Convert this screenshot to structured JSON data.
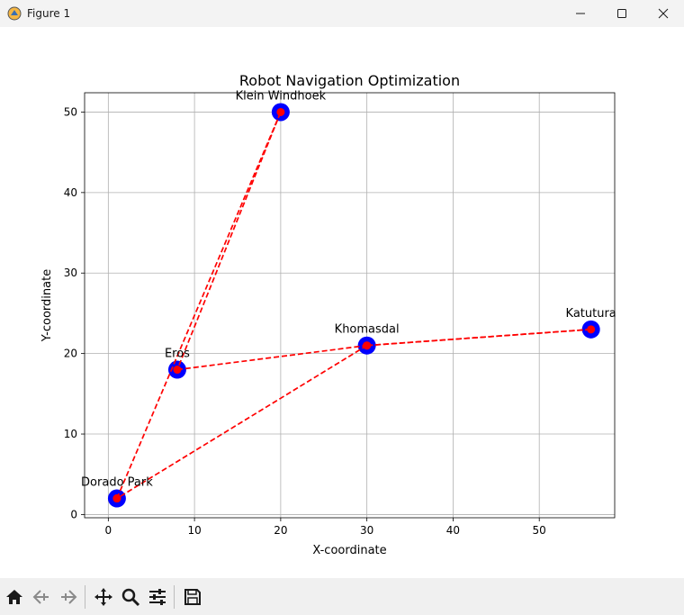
{
  "window": {
    "title": "Figure 1",
    "minimize_icon": "minimize-icon",
    "maximize_icon": "maximize-icon",
    "close_icon": "close-icon"
  },
  "toolbar": {
    "tools": [
      "home-icon",
      "back-arrow-icon",
      "forward-arrow-icon",
      "pan-move-icon",
      "zoom-magnifier-icon",
      "configure-subplots-icon",
      "save-floppy-icon"
    ]
  },
  "chart_data": {
    "type": "scatter",
    "title": "Robot Navigation Optimization",
    "xlabel": "X-coordinate",
    "ylabel": "Y-coordinate",
    "xlim": [
      -2.75,
      58.75
    ],
    "ylim": [
      -0.4,
      52.4
    ],
    "xticks": [
      0,
      10,
      20,
      30,
      40,
      50
    ],
    "yticks": [
      0,
      10,
      20,
      30,
      40,
      50
    ],
    "grid": true,
    "points": [
      {
        "label": "Dorado Park",
        "x": 1,
        "y": 2
      },
      {
        "label": "Eros",
        "x": 8,
        "y": 18
      },
      {
        "label": "Klein Windhoek",
        "x": 20,
        "y": 50
      },
      {
        "label": "Khomasdal",
        "x": 30,
        "y": 21
      },
      {
        "label": "Katutura",
        "x": 56,
        "y": 23
      }
    ],
    "route": [
      [
        1,
        2
      ],
      [
        20,
        50
      ],
      [
        8,
        18
      ],
      [
        30,
        21
      ],
      [
        56,
        23
      ],
      [
        30,
        21
      ],
      [
        1,
        2
      ]
    ],
    "colors": {
      "point": "#0000ff",
      "route": "#ff0000",
      "grid": "#b0b0b0"
    }
  }
}
